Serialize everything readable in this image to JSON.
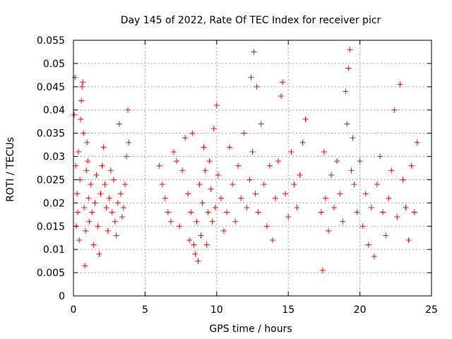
{
  "chart_data": {
    "type": "scatter",
    "title": "Day 145 of 2022, Rate Of TEC Index for receiver picr",
    "xlabel": "GPS time / hours",
    "ylabel": "ROTI / TECUs",
    "xlim": [
      0,
      25
    ],
    "ylim": [
      0,
      0.055
    ],
    "xticks": [
      "0",
      "5",
      "10",
      "15",
      "20",
      "25"
    ],
    "yticks": [
      "0",
      "0.005",
      "0.01",
      "0.015",
      "0.02",
      "0.025",
      "0.03",
      "0.035",
      "0.04",
      "0.045",
      "0.05",
      "0.055"
    ],
    "grid": true,
    "marker": "plus",
    "color": "#ff0000",
    "series": [
      {
        "values": [
          [
            0.05,
            0.039
          ],
          [
            0.1,
            0.047
          ],
          [
            0.15,
            0.028
          ],
          [
            0.2,
            0.015
          ],
          [
            0.25,
            0.022
          ],
          [
            0.3,
            0.018
          ],
          [
            0.35,
            0.031
          ],
          [
            0.4,
            0.012
          ],
          [
            0.45,
            0.025
          ],
          [
            0.5,
            0.038
          ],
          [
            0.55,
            0.042
          ],
          [
            0.6,
            0.045
          ],
          [
            0.65,
            0.046
          ],
          [
            0.7,
            0.035
          ],
          [
            0.75,
            0.019
          ],
          [
            0.8,
            0.0065
          ],
          [
            0.85,
            0.014
          ],
          [
            0.9,
            0.027
          ],
          [
            0.95,
            0.033
          ],
          [
            1.0,
            0.029
          ],
          [
            1.05,
            0.021
          ],
          [
            1.1,
            0.016
          ],
          [
            1.2,
            0.024
          ],
          [
            1.3,
            0.018
          ],
          [
            1.4,
            0.011
          ],
          [
            1.5,
            0.02
          ],
          [
            1.6,
            0.026
          ],
          [
            1.7,
            0.015
          ],
          [
            1.8,
            0.009
          ],
          [
            1.9,
            0.022
          ],
          [
            2.0,
            0.028
          ],
          [
            2.1,
            0.032
          ],
          [
            2.2,
            0.024
          ],
          [
            2.3,
            0.019
          ],
          [
            2.4,
            0.014
          ],
          [
            2.5,
            0.021
          ],
          [
            2.6,
            0.027
          ],
          [
            2.7,
            0.018
          ],
          [
            2.8,
            0.025
          ],
          [
            2.9,
            0.016
          ],
          [
            3.0,
            0.013
          ],
          [
            3.1,
            0.02
          ],
          [
            3.2,
            0.037
          ],
          [
            3.3,
            0.022
          ],
          [
            3.4,
            0.017
          ],
          [
            3.5,
            0.019
          ],
          [
            3.6,
            0.024
          ],
          [
            3.7,
            0.03
          ],
          [
            3.8,
            0.04
          ],
          [
            3.85,
            0.033
          ],
          [
            6.0,
            0.028
          ],
          [
            6.2,
            0.024
          ],
          [
            6.4,
            0.021
          ],
          [
            6.6,
            0.018
          ],
          [
            6.8,
            0.016
          ],
          [
            7.0,
            0.031
          ],
          [
            7.2,
            0.029
          ],
          [
            7.4,
            0.015
          ],
          [
            7.6,
            0.027
          ],
          [
            7.8,
            0.034
          ],
          [
            8.0,
            0.022
          ],
          [
            8.1,
            0.012
          ],
          [
            8.2,
            0.018
          ],
          [
            8.3,
            0.035
          ],
          [
            8.4,
            0.011
          ],
          [
            8.5,
            0.009
          ],
          [
            8.6,
            0.016
          ],
          [
            8.7,
            0.0075
          ],
          [
            8.8,
            0.024
          ],
          [
            8.9,
            0.013
          ],
          [
            9.0,
            0.02
          ],
          [
            9.1,
            0.032
          ],
          [
            9.2,
            0.027
          ],
          [
            9.3,
            0.011
          ],
          [
            9.4,
            0.018
          ],
          [
            9.5,
            0.029
          ],
          [
            9.6,
            0.023
          ],
          [
            9.7,
            0.016
          ],
          [
            9.8,
            0.036
          ],
          [
            9.9,
            0.019
          ],
          [
            10.0,
            0.041
          ],
          [
            10.1,
            0.026
          ],
          [
            10.3,
            0.021
          ],
          [
            10.5,
            0.014
          ],
          [
            10.7,
            0.018
          ],
          [
            10.9,
            0.032
          ],
          [
            11.1,
            0.024
          ],
          [
            11.3,
            0.016
          ],
          [
            11.5,
            0.028
          ],
          [
            11.7,
            0.021
          ],
          [
            11.9,
            0.035
          ],
          [
            12.1,
            0.019
          ],
          [
            12.3,
            0.025
          ],
          [
            12.4,
            0.047
          ],
          [
            12.5,
            0.031
          ],
          [
            12.6,
            0.0525
          ],
          [
            12.7,
            0.022
          ],
          [
            12.8,
            0.045
          ],
          [
            12.9,
            0.018
          ],
          [
            13.1,
            0.037
          ],
          [
            13.3,
            0.024
          ],
          [
            13.5,
            0.015
          ],
          [
            13.7,
            0.028
          ],
          [
            13.9,
            0.012
          ],
          [
            14.1,
            0.021
          ],
          [
            14.3,
            0.029
          ],
          [
            14.5,
            0.043
          ],
          [
            14.6,
            0.046
          ],
          [
            14.8,
            0.022
          ],
          [
            15.0,
            0.017
          ],
          [
            15.2,
            0.031
          ],
          [
            15.4,
            0.024
          ],
          [
            15.6,
            0.019
          ],
          [
            15.8,
            0.026
          ],
          [
            16.0,
            0.033
          ],
          [
            16.2,
            0.038
          ],
          [
            17.3,
            0.018
          ],
          [
            17.4,
            0.0055
          ],
          [
            17.5,
            0.031
          ],
          [
            17.6,
            0.021
          ],
          [
            17.8,
            0.014
          ],
          [
            18.0,
            0.026
          ],
          [
            18.2,
            0.019
          ],
          [
            18.4,
            0.029
          ],
          [
            18.6,
            0.022
          ],
          [
            18.8,
            0.016
          ],
          [
            19.0,
            0.044
          ],
          [
            19.1,
            0.037
          ],
          [
            19.2,
            0.049
          ],
          [
            19.3,
            0.053
          ],
          [
            19.4,
            0.027
          ],
          [
            19.5,
            0.034
          ],
          [
            19.6,
            0.024
          ],
          [
            19.8,
            0.018
          ],
          [
            20.0,
            0.029
          ],
          [
            20.2,
            0.015
          ],
          [
            20.4,
            0.022
          ],
          [
            20.6,
            0.011
          ],
          [
            20.8,
            0.019
          ],
          [
            21.0,
            0.0085
          ],
          [
            21.2,
            0.024
          ],
          [
            21.4,
            0.03
          ],
          [
            21.6,
            0.018
          ],
          [
            21.8,
            0.013
          ],
          [
            22.0,
            0.021
          ],
          [
            22.2,
            0.027
          ],
          [
            22.4,
            0.04
          ],
          [
            22.6,
            0.017
          ],
          [
            22.8,
            0.0455
          ],
          [
            23.0,
            0.025
          ],
          [
            23.2,
            0.019
          ],
          [
            23.4,
            0.012
          ],
          [
            23.6,
            0.028
          ],
          [
            23.8,
            0.018
          ],
          [
            24.0,
            0.033
          ]
        ]
      }
    ]
  }
}
